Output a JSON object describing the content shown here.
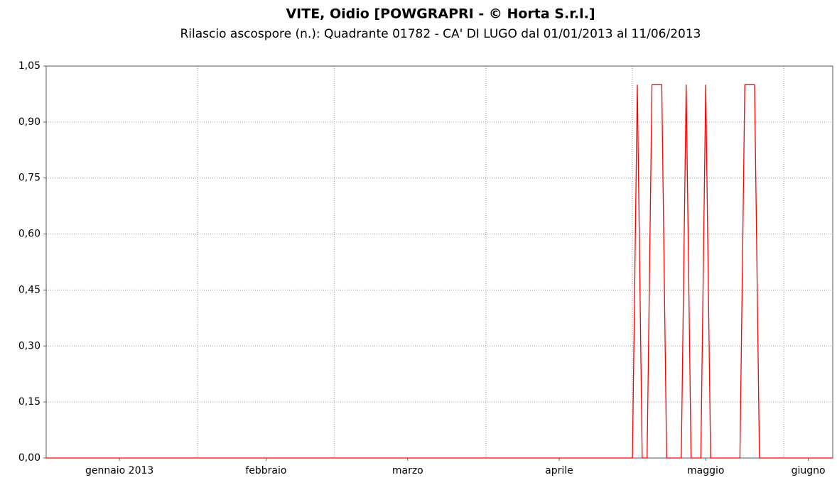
{
  "chart_data": {
    "type": "line",
    "title": "VITE, Oidio [POWGRAPRI - © Horta S.r.l.]",
    "subtitle": "Rilascio ascospore (n.): Quadrante 01782 - CA' DI LUGO dal 01/01/2013 al 11/06/2013",
    "x": [
      "2013-01-01",
      "2013-05-01",
      "2013-05-02",
      "2013-05-03",
      "2013-05-04",
      "2013-05-05",
      "2013-05-07",
      "2013-05-08",
      "2013-05-11",
      "2013-05-12",
      "2013-05-13",
      "2013-05-15",
      "2013-05-16",
      "2013-05-17",
      "2013-05-23",
      "2013-05-24",
      "2013-05-26",
      "2013-05-27",
      "2013-06-11"
    ],
    "series": [
      {
        "name": "Rilascio ascospore",
        "color": "#ff0000",
        "values": [
          0,
          0,
          1,
          0,
          0,
          1,
          1,
          0,
          0,
          1,
          0,
          0,
          1,
          0,
          0,
          1,
          1,
          0,
          0
        ]
      }
    ],
    "xlim": [
      "2013-01-01",
      "2013-06-11"
    ],
    "xticks": [
      {
        "value": "2013-01-16",
        "label": "gennaio 2013"
      },
      {
        "value": "2013-02-15",
        "label": "febbraio"
      },
      {
        "value": "2013-03-16",
        "label": "marzo"
      },
      {
        "value": "2013-04-16",
        "label": "aprile"
      },
      {
        "value": "2013-05-16",
        "label": "maggio"
      },
      {
        "value": "2013-06-06",
        "label": "giugno"
      }
    ],
    "xgrid": [
      "2013-02-01",
      "2013-03-01",
      "2013-04-01",
      "2013-05-01",
      "2013-06-01"
    ],
    "ylim": [
      0,
      1.05
    ],
    "yticks": [
      {
        "value": 0,
        "label": "0,00"
      },
      {
        "value": 0.15,
        "label": "0,15"
      },
      {
        "value": 0.3,
        "label": "0,30"
      },
      {
        "value": 0.45,
        "label": "0,45"
      },
      {
        "value": 0.6,
        "label": "0,60"
      },
      {
        "value": 0.75,
        "label": "0,75"
      },
      {
        "value": 0.9,
        "label": "0,90"
      },
      {
        "value": 1.05,
        "label": "1,05"
      }
    ],
    "grid": true
  }
}
